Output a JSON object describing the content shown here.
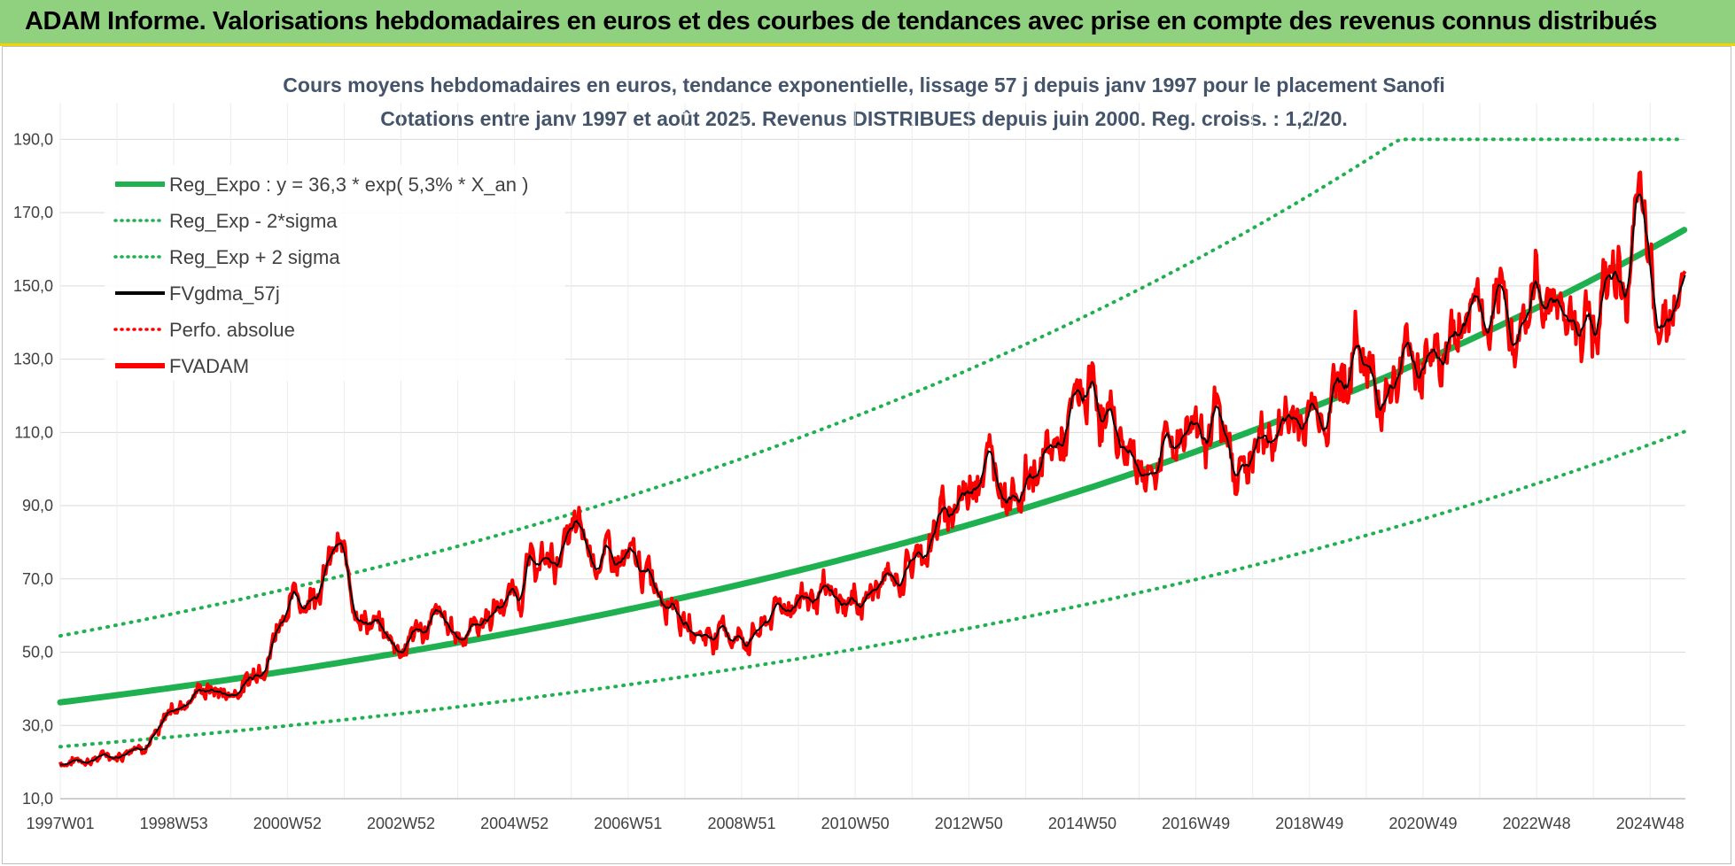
{
  "header": {
    "title": "ADAM Informe. Valorisations hebdomadaires en euros et des courbes de tendances avec prise en compte des revenus connus distribués"
  },
  "chart_data": {
    "type": "line",
    "title": "Cours moyens hebdomadaires en euros, tendance exponentielle, lissage 57 j depuis janv 1997 pour le placement Sanofi",
    "subtitle": "Cotations entre janv 1997 et août 2025.  Revenus DISTRIBUES depuis juin 2000.  Reg. croiss. : 1,2/20.",
    "xlabel": "",
    "ylabel": "",
    "ylim": [
      10,
      200
    ],
    "yticks": [
      "10,0",
      "30,0",
      "50,0",
      "70,0",
      "90,0",
      "110,0",
      "130,0",
      "150,0",
      "170,0",
      "190,0"
    ],
    "x_range_years": [
      1997.0,
      2025.62
    ],
    "x_tick_labels": [
      "1997W01",
      "1998W53",
      "2000W52",
      "2002W52",
      "2004W52",
      "2006W51",
      "2008W51",
      "2010W50",
      "2012W50",
      "2014W50",
      "2016W49",
      "2018W49",
      "2020W49",
      "2022W48",
      "2024W48"
    ],
    "x_tick_years": [
      1997.0,
      1999.0,
      2001.0,
      2003.0,
      2005.0,
      2007.0,
      2009.0,
      2011.0,
      2013.0,
      2015.0,
      2017.0,
      2019.0,
      2021.0,
      2023.0,
      2025.0
    ],
    "grid": true,
    "legend_position": "top-left",
    "regression": {
      "a": 36.3,
      "rate": 0.053,
      "sigma_factor": 1.5
    },
    "series": [
      {
        "name": "Reg_Expo : y = 36,3 * exp( 5,3% *  X_an )",
        "color": "#1fb04f",
        "style": "solid-thick",
        "kind": "reg"
      },
      {
        "name": "Reg_Exp - 2*sigma",
        "color": "#1fb04f",
        "style": "dotted",
        "kind": "reg_low"
      },
      {
        "name": "Reg_Exp + 2 sigma",
        "color": "#1fb04f",
        "style": "dotted",
        "kind": "reg_high"
      },
      {
        "name": "FVgdma_57j",
        "color": "#000000",
        "style": "solid",
        "kind": "smooth"
      },
      {
        "name": "Perfo. absolue",
        "color": "#ff0000",
        "style": "dotted",
        "kind": "none"
      },
      {
        "name": "FVADAM",
        "color": "#ff0000",
        "style": "solid-thick",
        "kind": "price"
      }
    ],
    "price_points": {
      "x": [
        1997.0,
        1997.5,
        1998.0,
        1998.3,
        1998.7,
        1999.0,
        1999.5,
        2000.0,
        2000.3,
        2000.6,
        2001.0,
        2001.3,
        2001.6,
        2001.9,
        2002.2,
        2002.5,
        2002.8,
        2003.0,
        2003.3,
        2003.6,
        2004.0,
        2004.3,
        2004.6,
        2005.0,
        2005.3,
        2005.7,
        2006.0,
        2006.4,
        2006.8,
        2007.0,
        2007.4,
        2007.8,
        2008.0,
        2008.3,
        2008.7,
        2009.0,
        2009.3,
        2009.7,
        2010.0,
        2010.3,
        2010.7,
        2011.0,
        2011.3,
        2011.7,
        2012.0,
        2012.3,
        2012.6,
        2012.9,
        2013.2,
        2013.5,
        2013.8,
        2014.0,
        2014.3,
        2014.6,
        2014.9,
        2015.2,
        2015.5,
        2015.8,
        2016.0,
        2016.3,
        2016.6,
        2017.0,
        2017.3,
        2017.6,
        2017.9,
        2018.2,
        2018.5,
        2018.8,
        2019.0,
        2019.3,
        2019.6,
        2019.9,
        2020.2,
        2020.5,
        2020.8,
        2021.0,
        2021.3,
        2021.6,
        2021.9,
        2022.2,
        2022.5,
        2022.8,
        2023.0,
        2023.3,
        2023.6,
        2023.9,
        2024.2,
        2024.5,
        2024.8,
        2025.0,
        2025.3,
        2025.62
      ],
      "y": [
        20,
        21,
        22,
        25,
        27,
        35,
        40,
        39,
        42,
        50,
        64,
        65,
        72,
        77,
        64,
        58,
        53,
        52,
        56,
        58,
        55,
        58,
        61,
        66,
        73,
        75,
        81,
        77,
        74,
        73,
        70,
        68,
        57,
        55,
        56,
        54,
        56,
        62,
        66,
        65,
        62,
        64,
        66,
        70,
        75,
        80,
        88,
        93,
        104,
        100,
        97,
        98,
        102,
        106,
        114,
        121,
        112,
        105,
        101,
        102,
        107,
        115,
        114,
        103,
        102,
        107,
        112,
        113,
        116,
        120,
        127,
        133,
        125,
        124,
        132,
        134,
        131,
        136,
        148,
        134,
        138,
        144,
        148,
        151,
        140,
        145,
        148,
        152,
        163,
        150,
        148,
        146
      ]
    },
    "reg_high_cap": 200
  }
}
